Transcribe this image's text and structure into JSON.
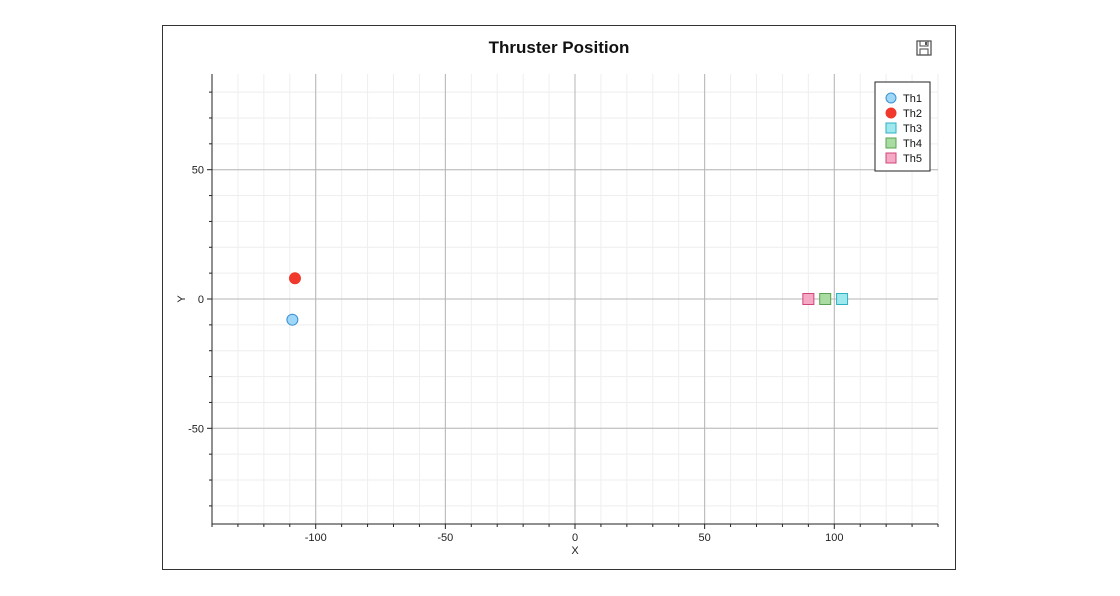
{
  "chart_data": {
    "type": "scatter",
    "title": "Thruster Position",
    "xlabel": "X",
    "ylabel": "Y",
    "xlim": [
      -140,
      140
    ],
    "ylim": [
      -87,
      87
    ],
    "x_ticks": [
      -100,
      -50,
      0,
      50,
      100
    ],
    "y_ticks": [
      50,
      0,
      -50
    ],
    "grid": true,
    "legend_position": "top-right",
    "series": [
      {
        "name": "Th1",
        "marker": "circle",
        "fill": "#9ed7f7",
        "stroke": "#3a8fd0",
        "points": [
          {
            "x": -109,
            "y": -8
          }
        ]
      },
      {
        "name": "Th2",
        "marker": "circle",
        "fill": "#f0382d",
        "stroke": "#f0382d",
        "points": [
          {
            "x": -108,
            "y": 8
          }
        ]
      },
      {
        "name": "Th3",
        "marker": "square",
        "fill": "#9ee8ee",
        "stroke": "#2fb0c0",
        "points": [
          {
            "x": 103,
            "y": 0
          }
        ]
      },
      {
        "name": "Th4",
        "marker": "square",
        "fill": "#a8dca0",
        "stroke": "#5aa052",
        "points": [
          {
            "x": 96.5,
            "y": 0
          }
        ]
      },
      {
        "name": "Th5",
        "marker": "square",
        "fill": "#f5a9c4",
        "stroke": "#d0457a",
        "points": [
          {
            "x": 90,
            "y": 0
          }
        ]
      }
    ]
  },
  "toolbar": {
    "save_icon": "save-icon"
  }
}
